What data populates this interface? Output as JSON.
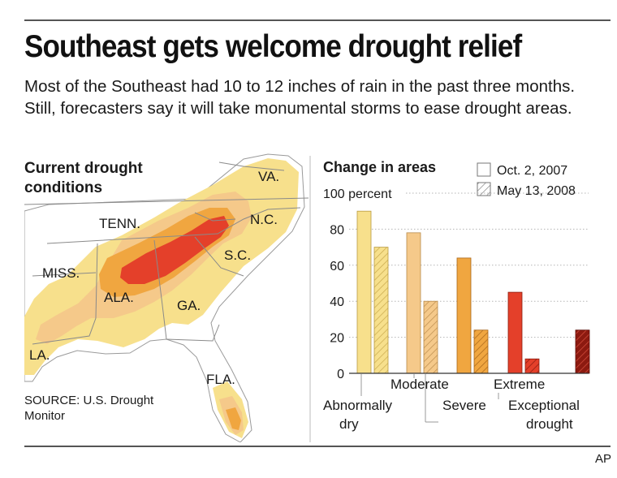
{
  "headline": "Southeast gets welcome drought relief",
  "deck": "Most of the Southeast had 10 to 12 inches of rain in the past three months. Still, forecasters say it will take monumental storms to ease drought areas.",
  "map": {
    "title": "Current drought conditions",
    "state_labels": {
      "va": "VA.",
      "tenn": "TENN.",
      "nc": "N.C.",
      "miss": "MISS.",
      "sc": "S.C.",
      "ala": "ALA.",
      "ga": "GA.",
      "la": "LA.",
      "fla": "FLA."
    },
    "source": "SOURCE: U.S. Drought Monitor"
  },
  "credit": "AP",
  "colors": {
    "abnormally_dry": "#f7e08c",
    "moderate": "#f5c98a",
    "severe": "#f0a640",
    "extreme": "#e4402a",
    "exceptional": "#8c1a10"
  },
  "chart_data": {
    "type": "bar",
    "title": "Change in areas",
    "ylabel_top": "100 percent",
    "yticks": [
      "80",
      "60",
      "40",
      "20",
      "0"
    ],
    "ylim": [
      0,
      100
    ],
    "categories": [
      "Abnormally dry",
      "Moderate",
      "Severe",
      "Extreme",
      "Exceptional drought"
    ],
    "category_lines": {
      "abnormally_dry": [
        "Abnormally",
        "dry"
      ],
      "moderate": [
        "Moderate"
      ],
      "severe": [
        "Severe"
      ],
      "extreme": [
        "Extreme"
      ],
      "exceptional": [
        "Exceptional",
        "drought"
      ]
    },
    "series": [
      {
        "name": "Oct. 2, 2007",
        "values": [
          90,
          78,
          64,
          45,
          0
        ]
      },
      {
        "name": "May 13, 2008",
        "values": [
          70,
          40,
          24,
          8,
          24
        ]
      }
    ],
    "legend": [
      "Oct. 2, 2007",
      "May 13, 2008"
    ],
    "grid": true,
    "legend_position": "top-right"
  }
}
